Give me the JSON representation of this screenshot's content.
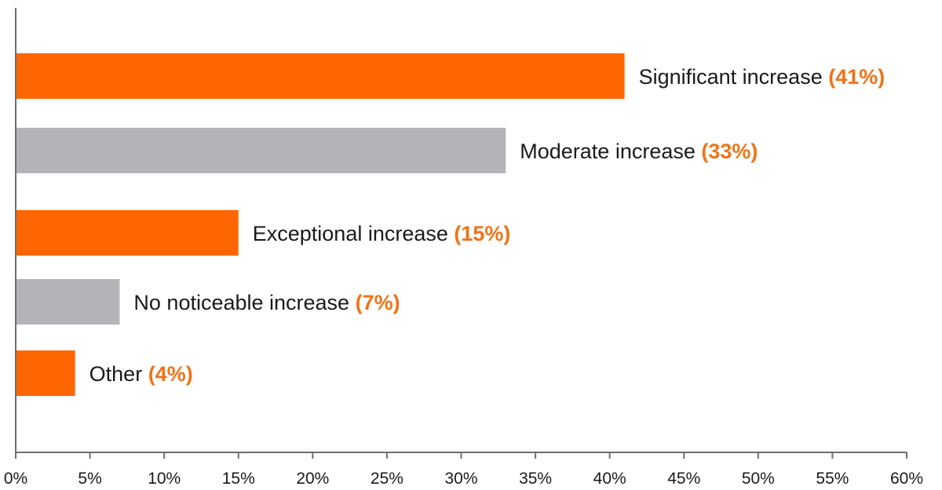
{
  "chart_data": {
    "type": "bar",
    "orientation": "horizontal",
    "categories": [
      "Significant increase",
      "Moderate increase",
      "Exceptional increase",
      "No noticeable increase",
      "Other"
    ],
    "values": [
      41,
      33,
      15,
      7,
      4
    ],
    "value_labels": [
      "(41%)",
      "(33%)",
      "(15%)",
      "(7%)",
      "(4%)"
    ],
    "xlim": [
      0,
      60
    ],
    "x_ticks": [
      "0%",
      "5%",
      "10%",
      "15%",
      "20%",
      "25%",
      "30%",
      "35%",
      "40%",
      "45%",
      "50%",
      "55%",
      "60%"
    ],
    "title": "",
    "xlabel": "",
    "ylabel": "",
    "grid": false,
    "legend": "none",
    "colors": {
      "accent": "#ff6600",
      "neutral": "#b3b3b8",
      "axis": "#6e6e6e",
      "text": "#1a1a1a",
      "pct_text": "#f07316"
    },
    "bar_colors": [
      "accent",
      "neutral",
      "accent",
      "neutral",
      "accent"
    ]
  }
}
